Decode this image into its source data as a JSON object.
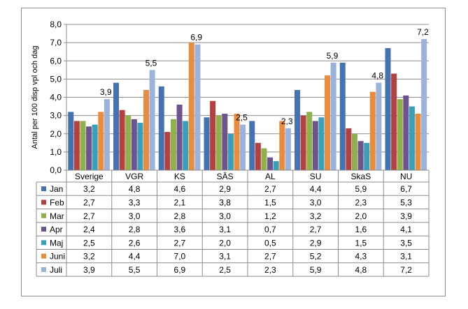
{
  "chart_data": {
    "type": "bar",
    "ylabel": "Antal per 100 disp vpl och dag",
    "ylim": [
      0,
      8
    ],
    "y_ticks": [
      "0,0",
      "1,0",
      "2,0",
      "3,0",
      "4,0",
      "5,0",
      "6,0",
      "7,0",
      "8,0"
    ],
    "grid": true,
    "legend": "table-left",
    "categories": [
      "Sverige",
      "VGR",
      "KS",
      "SÄS",
      "AL",
      "SU",
      "SkaS",
      "NU"
    ],
    "series": [
      {
        "name": "Jan",
        "color": "#4573b1",
        "values": [
          3.2,
          4.8,
          4.6,
          2.9,
          2.7,
          4.4,
          5.9,
          6.7
        ],
        "display": [
          "3,2",
          "4,8",
          "4,6",
          "2,9",
          "2,7",
          "4,4",
          "5,9",
          "6,7"
        ]
      },
      {
        "name": "Feb",
        "color": "#b4413f",
        "values": [
          2.7,
          3.3,
          2.1,
          3.8,
          1.5,
          3.0,
          2.3,
          5.3
        ],
        "display": [
          "2,7",
          "3,3",
          "2,1",
          "3,8",
          "1,5",
          "3,0",
          "2,3",
          "5,3"
        ]
      },
      {
        "name": "Mar",
        "color": "#8fb04a",
        "values": [
          2.7,
          3.0,
          2.8,
          3.0,
          1.2,
          3.2,
          2.0,
          3.9
        ],
        "display": [
          "2,7",
          "3,0",
          "2,8",
          "3,0",
          "1,2",
          "3,2",
          "2,0",
          "3,9"
        ]
      },
      {
        "name": "Apr",
        "color": "#6d5490",
        "values": [
          2.4,
          2.8,
          3.6,
          3.1,
          0.7,
          2.7,
          1.6,
          4.1
        ],
        "display": [
          "2,4",
          "2,8",
          "3,6",
          "3,1",
          "0,7",
          "2,7",
          "1,6",
          "4,1"
        ]
      },
      {
        "name": "Maj",
        "color": "#38a0b8",
        "values": [
          2.5,
          2.6,
          2.7,
          2.0,
          0.5,
          2.9,
          1.5,
          3.5
        ],
        "display": [
          "2,5",
          "2,6",
          "2,7",
          "2,0",
          "0,5",
          "2,9",
          "1,5",
          "3,5"
        ]
      },
      {
        "name": "Juni",
        "color": "#ea8c3d",
        "values": [
          3.2,
          4.4,
          7.0,
          3.1,
          2.7,
          5.2,
          4.3,
          3.1
        ],
        "display": [
          "3,2",
          "4,4",
          "7,0",
          "3,1",
          "2,7",
          "5,2",
          "4,3",
          "3,1"
        ]
      },
      {
        "name": "Juli",
        "color": "#9bb2db",
        "values": [
          3.9,
          5.5,
          6.9,
          2.5,
          2.3,
          5.9,
          4.8,
          7.2
        ],
        "display": [
          "3,9",
          "5,5",
          "6,9",
          "2,5",
          "2,3",
          "5,9",
          "4,8",
          "7,2"
        ]
      }
    ],
    "data_labels": {
      "series": "Juli",
      "values": [
        "3,9",
        "5,5",
        "6,9",
        "2,5",
        "2,3",
        "5,9",
        "4,8",
        "7,2"
      ]
    }
  }
}
